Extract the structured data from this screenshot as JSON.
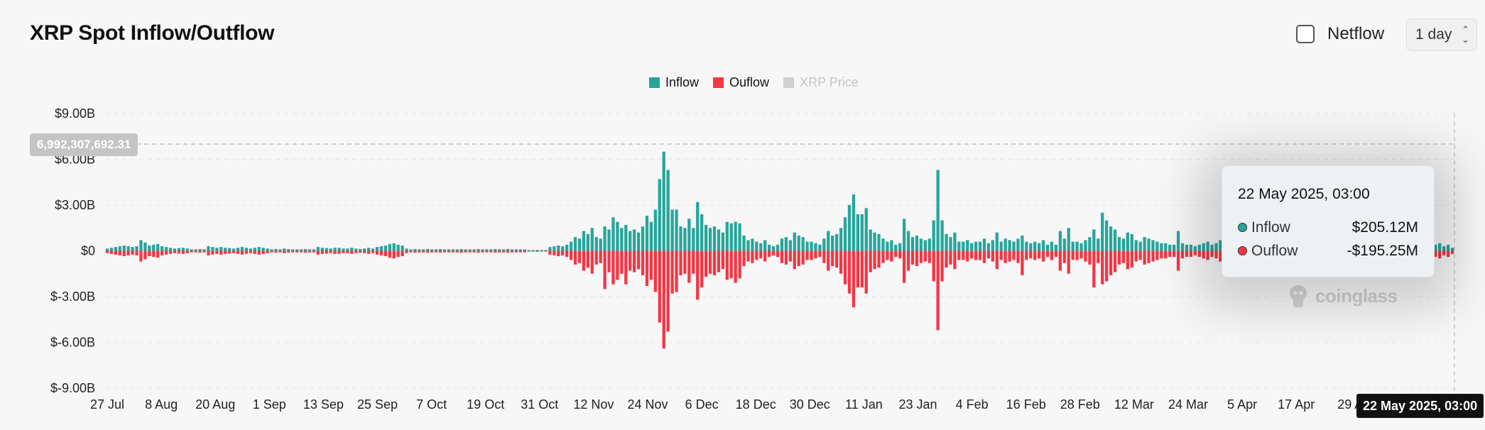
{
  "header": {
    "title": "XRP Spot Inflow/Outflow",
    "netflow_label": "Netflow",
    "range_value": "1 day"
  },
  "legend": [
    {
      "label": "Inflow",
      "color": "#26a69a",
      "active": true
    },
    {
      "label": "Ouflow",
      "color": "#f23645",
      "active": true
    },
    {
      "label": "XRP Price",
      "color": "#c8c8c8",
      "active": false
    }
  ],
  "tooltip": {
    "date": "22 May 2025, 03:00",
    "rows": [
      {
        "name": "Inflow",
        "value": "$205.12M",
        "color": "#26a69a"
      },
      {
        "name": "Ouflow",
        "value": "-$195.25M",
        "color": "#f23645"
      }
    ]
  },
  "crosshair": {
    "y_label": "6,992,307,692.31",
    "x_label": "22 May 2025, 03:00"
  },
  "watermark": "coinglass",
  "chart_data": {
    "type": "bar",
    "y_unit": "USD billions",
    "ylim": [
      -9,
      9
    ],
    "y_ticks": [
      "$9.00B",
      "$6.00B",
      "$3.00B",
      "$0",
      "$-3.00B",
      "$-6.00B",
      "$-9.00B"
    ],
    "y_tick_values": [
      9,
      6,
      3,
      0,
      -3,
      -6,
      -9
    ],
    "x_ticks": [
      "27 Jul",
      "8 Aug",
      "20 Aug",
      "1 Sep",
      "13 Sep",
      "25 Sep",
      "7 Oct",
      "19 Oct",
      "31 Oct",
      "12 Nov",
      "24 Nov",
      "6 Dec",
      "18 Dec",
      "30 Dec",
      "11 Jan",
      "23 Jan",
      "4 Feb",
      "16 Feb",
      "28 Feb",
      "12 Mar",
      "24 Mar",
      "5 Apr",
      "17 Apr",
      "29 A"
    ],
    "x_start": "2024-07-27",
    "x_end": "2025-05-22",
    "grid": true,
    "legend_position": "top-center",
    "series": [
      {
        "name": "Inflow",
        "color": "#26a69a",
        "values": [
          0.15,
          0.2,
          0.25,
          0.3,
          0.35,
          0.3,
          0.25,
          0.3,
          0.7,
          0.55,
          0.35,
          0.4,
          0.45,
          0.3,
          0.25,
          0.2,
          0.15,
          0.18,
          0.2,
          0.15,
          0.1,
          0.1,
          0.12,
          0.1,
          0.3,
          0.25,
          0.2,
          0.25,
          0.2,
          0.18,
          0.15,
          0.2,
          0.25,
          0.2,
          0.15,
          0.2,
          0.25,
          0.2,
          0.15,
          0.1,
          0.12,
          0.1,
          0.15,
          0.12,
          0.1,
          0.1,
          0.1,
          0.12,
          0.1,
          0.1,
          0.25,
          0.2,
          0.18,
          0.15,
          0.2,
          0.2,
          0.15,
          0.15,
          0.2,
          0.15,
          0.12,
          0.15,
          0.2,
          0.15,
          0.25,
          0.3,
          0.35,
          0.45,
          0.5,
          0.4,
          0.35,
          0.15,
          0.1,
          0.12,
          0.1,
          0.1,
          0.12,
          0.1,
          0.1,
          0.12,
          0.1,
          0.1,
          0.1,
          0.1,
          0.12,
          0.1,
          0.1,
          0.1,
          0.12,
          0.1,
          0.1,
          0.1,
          0.12,
          0.1,
          0.1,
          0.12,
          0.1,
          0.1,
          0.1,
          0.1,
          0.05,
          0.05,
          0.06,
          0.05,
          0.05,
          0.25,
          0.3,
          0.35,
          0.3,
          0.4,
          0.6,
          0.9,
          0.8,
          1.3,
          1.1,
          1.5,
          0.9,
          0.8,
          1.6,
          1.4,
          2.2,
          1.9,
          1.5,
          1.7,
          1.3,
          1.4,
          1.2,
          1.6,
          2.3,
          1.9,
          2.7,
          4.7,
          6.5,
          5.3,
          2.7,
          2.7,
          1.6,
          1.5,
          2.1,
          1.5,
          3.2,
          2.4,
          1.7,
          1.5,
          1.6,
          1.4,
          1.2,
          1.9,
          1.8,
          1.9,
          1.8,
          1.0,
          0.7,
          0.8,
          0.6,
          0.5,
          0.7,
          0.4,
          0.3,
          0.4,
          0.8,
          0.9,
          0.7,
          1.2,
          1.0,
          0.9,
          0.6,
          0.6,
          0.5,
          0.4,
          0.8,
          1.3,
          1.0,
          1.1,
          1.5,
          2.2,
          3.0,
          3.7,
          2.4,
          2.4,
          2.8,
          1.4,
          1.2,
          1.1,
          0.8,
          0.6,
          0.7,
          0.4,
          0.5,
          2.1,
          1.3,
          0.9,
          1.0,
          0.8,
          0.7,
          0.8,
          2.0,
          5.3,
          2.0,
          1.1,
          0.9,
          1.2,
          0.6,
          0.6,
          0.7,
          0.5,
          0.6,
          0.6,
          0.8,
          0.5,
          0.7,
          1.2,
          0.6,
          0.8,
          0.7,
          0.6,
          0.8,
          1.0,
          0.6,
          0.5,
          0.6,
          0.5,
          0.7,
          0.4,
          0.6,
          0.4,
          1.3,
          0.8,
          1.5,
          0.6,
          0.6,
          0.5,
          0.7,
          0.9,
          1.4,
          0.8,
          2.5,
          2.0,
          1.6,
          1.4,
          0.9,
          0.8,
          1.2,
          1.1,
          0.7,
          0.6,
          0.9,
          0.8,
          0.7,
          0.6,
          0.5,
          0.5,
          0.4,
          0.4,
          1.3,
          0.5,
          0.4,
          0.4,
          0.3,
          0.4,
          0.5,
          0.6,
          0.4,
          0.5,
          0.7,
          0.5,
          0.4,
          0.5,
          0.4,
          0.4,
          0.6,
          0.5,
          0.4,
          0.5,
          0.6,
          0.5,
          0.4,
          0.5,
          0.4,
          0.5,
          0.4,
          0.5,
          0.6,
          0.5,
          0.4,
          0.4,
          0.5,
          0.4,
          0.6,
          0.5,
          0.4,
          0.5,
          0.4,
          0.5,
          0.4,
          0.5,
          0.6,
          0.4,
          0.5,
          0.4,
          0.5,
          0.4,
          0.5,
          0.4,
          0.6,
          0.5,
          0.4,
          0.5,
          0.6,
          0.5,
          0.4,
          0.5,
          0.4,
          0.5,
          0.5,
          0.4,
          0.5,
          0.3,
          0.4,
          0.2
        ]
      },
      {
        "name": "Ouflow",
        "color": "#f23645",
        "values": [
          -0.15,
          -0.2,
          -0.25,
          -0.3,
          -0.35,
          -0.3,
          -0.25,
          -0.3,
          -0.7,
          -0.55,
          -0.35,
          -0.4,
          -0.45,
          -0.3,
          -0.25,
          -0.2,
          -0.15,
          -0.18,
          -0.2,
          -0.15,
          -0.1,
          -0.1,
          -0.12,
          -0.1,
          -0.3,
          -0.25,
          -0.2,
          -0.25,
          -0.2,
          -0.18,
          -0.15,
          -0.2,
          -0.25,
          -0.2,
          -0.15,
          -0.2,
          -0.25,
          -0.2,
          -0.15,
          -0.1,
          -0.12,
          -0.1,
          -0.15,
          -0.12,
          -0.1,
          -0.1,
          -0.1,
          -0.12,
          -0.1,
          -0.1,
          -0.25,
          -0.2,
          -0.18,
          -0.15,
          -0.2,
          -0.2,
          -0.15,
          -0.15,
          -0.2,
          -0.15,
          -0.12,
          -0.15,
          -0.2,
          -0.15,
          -0.25,
          -0.3,
          -0.35,
          -0.45,
          -0.5,
          -0.4,
          -0.35,
          -0.15,
          -0.1,
          -0.12,
          -0.1,
          -0.1,
          -0.12,
          -0.1,
          -0.1,
          -0.12,
          -0.1,
          -0.1,
          -0.1,
          -0.1,
          -0.12,
          -0.1,
          -0.1,
          -0.1,
          -0.12,
          -0.1,
          -0.1,
          -0.1,
          -0.12,
          -0.1,
          -0.1,
          -0.12,
          -0.1,
          -0.1,
          -0.1,
          -0.1,
          -0.05,
          -0.05,
          -0.06,
          -0.05,
          -0.05,
          -0.25,
          -0.3,
          -0.35,
          -0.3,
          -0.4,
          -0.6,
          -0.9,
          -0.8,
          -1.3,
          -1.1,
          -1.5,
          -0.9,
          -0.8,
          -2.5,
          -1.4,
          -2.2,
          -1.9,
          -1.5,
          -2.2,
          -1.3,
          -1.4,
          -1.2,
          -1.6,
          -2.3,
          -1.9,
          -2.7,
          -4.7,
          -6.4,
          -5.3,
          -2.8,
          -2.7,
          -1.6,
          -1.5,
          -2.1,
          -1.5,
          -3.2,
          -2.4,
          -1.7,
          -1.5,
          -1.6,
          -1.4,
          -1.2,
          -1.9,
          -1.8,
          -2.1,
          -1.8,
          -1.0,
          -0.7,
          -0.8,
          -0.6,
          -0.5,
          -0.7,
          -0.4,
          -0.3,
          -0.4,
          -0.8,
          -0.9,
          -0.7,
          -1.2,
          -1.0,
          -0.9,
          -0.6,
          -0.6,
          -0.5,
          -0.4,
          -0.8,
          -1.3,
          -1.0,
          -1.1,
          -1.5,
          -2.2,
          -2.8,
          -3.7,
          -2.4,
          -2.4,
          -2.8,
          -1.4,
          -1.2,
          -1.1,
          -0.8,
          -0.6,
          -0.7,
          -0.4,
          -0.5,
          -2.1,
          -1.3,
          -0.9,
          -1.0,
          -0.8,
          -0.7,
          -0.8,
          -2.0,
          -5.2,
          -2.0,
          -1.1,
          -0.9,
          -1.2,
          -0.6,
          -0.6,
          -0.7,
          -0.5,
          -0.6,
          -0.6,
          -0.8,
          -0.5,
          -0.7,
          -1.2,
          -0.6,
          -0.8,
          -0.7,
          -0.6,
          -0.8,
          -1.6,
          -0.6,
          -0.5,
          -0.6,
          -0.5,
          -0.7,
          -0.4,
          -0.6,
          -0.4,
          -1.3,
          -0.8,
          -1.5,
          -0.6,
          -0.6,
          -0.5,
          -0.7,
          -0.9,
          -2.4,
          -0.8,
          -2.2,
          -2.0,
          -1.6,
          -1.4,
          -0.9,
          -0.8,
          -1.2,
          -1.1,
          -0.7,
          -0.6,
          -0.9,
          -0.8,
          -0.7,
          -0.6,
          -0.5,
          -0.5,
          -0.4,
          -0.4,
          -1.3,
          -0.5,
          -0.4,
          -0.4,
          -0.3,
          -0.4,
          -0.5,
          -0.6,
          -0.4,
          -0.5,
          -0.7,
          -0.5,
          -0.4,
          -0.5,
          -0.4,
          -0.4,
          -0.6,
          -0.5,
          -0.4,
          -0.5,
          -0.6,
          -0.5,
          -0.4,
          -0.5,
          -0.4,
          -0.5,
          -0.4,
          -0.5,
          -0.6,
          -0.5,
          -0.4,
          -0.4,
          -0.5,
          -0.4,
          -0.6,
          -0.5,
          -0.4,
          -0.5,
          -0.4,
          -0.5,
          -0.4,
          -0.5,
          -0.6,
          -0.4,
          -0.5,
          -0.4,
          -0.5,
          -0.4,
          -0.5,
          -0.4,
          -0.6,
          -0.5,
          -0.4,
          -0.5,
          -0.6,
          -0.5,
          -0.4,
          -0.5,
          -0.4,
          -0.5,
          -0.5,
          -0.4,
          -0.5,
          -0.3,
          -0.4,
          -0.2
        ]
      }
    ]
  }
}
